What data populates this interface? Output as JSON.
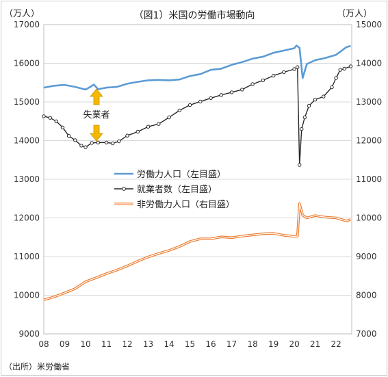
{
  "chart_data": {
    "type": "line",
    "title": "（図1）米国の労働市場動向",
    "source": "（出所）米労働省",
    "left_unit": "（万人）",
    "right_unit": "（万人）",
    "ylim_left": [
      9000,
      17000
    ],
    "ylim_right": [
      7000,
      15000
    ],
    "left_ticks": [
      "17000",
      "16000",
      "15000",
      "14000",
      "13000",
      "12000",
      "11000",
      "10000",
      "9000"
    ],
    "right_ticks": [
      "15000",
      "14000",
      "13000",
      "12000",
      "11000",
      "10000",
      "9000",
      "8000",
      "7000"
    ],
    "x_ticks": [
      "08",
      "09",
      "10",
      "11",
      "12",
      "13",
      "14",
      "15",
      "16",
      "17",
      "18",
      "19",
      "20",
      "21",
      "22"
    ],
    "annotation": "失業者",
    "grid": true,
    "legend_placement": "center",
    "series": [
      {
        "name": "労働力人口（左目盛）",
        "axis": "left",
        "color": "#5b9bd5",
        "style": "line",
        "x": [
          2008.0,
          2008.5,
          2009.0,
          2009.5,
          2010.0,
          2010.2,
          2010.4,
          2010.6,
          2011.0,
          2011.5,
          2012.0,
          2012.5,
          2013.0,
          2013.5,
          2014.0,
          2014.5,
          2015.0,
          2015.5,
          2016.0,
          2016.5,
          2017.0,
          2017.5,
          2018.0,
          2018.5,
          2019.0,
          2019.5,
          2020.0,
          2020.1,
          2020.25,
          2020.4,
          2020.6,
          2021.0,
          2021.5,
          2022.0,
          2022.5,
          2022.7
        ],
        "values": [
          15370,
          15420,
          15440,
          15390,
          15320,
          15380,
          15450,
          15330,
          15370,
          15390,
          15470,
          15520,
          15560,
          15570,
          15560,
          15580,
          15670,
          15720,
          15830,
          15860,
          15960,
          16030,
          16120,
          16170,
          16270,
          16330,
          16390,
          16460,
          16400,
          15620,
          15980,
          16080,
          16140,
          16220,
          16420,
          16450
        ]
      },
      {
        "name": "就業者数（左目盛）",
        "axis": "left",
        "color": "#262626",
        "style": "line-markers",
        "x": [
          2008.0,
          2008.3,
          2008.6,
          2008.9,
          2009.2,
          2009.5,
          2009.8,
          2010.0,
          2010.3,
          2010.6,
          2011.0,
          2011.3,
          2011.6,
          2012.0,
          2012.5,
          2013.0,
          2013.5,
          2014.0,
          2014.5,
          2015.0,
          2015.5,
          2016.0,
          2016.5,
          2017.0,
          2017.5,
          2018.0,
          2018.5,
          2019.0,
          2019.5,
          2020.0,
          2020.15,
          2020.25,
          2020.35,
          2020.5,
          2020.7,
          2021.0,
          2021.4,
          2021.8,
          2022.0,
          2022.2,
          2022.4,
          2022.7
        ],
        "values": [
          14630,
          14590,
          14500,
          14340,
          14120,
          14010,
          13870,
          13830,
          13940,
          13950,
          13950,
          13930,
          13980,
          14130,
          14230,
          14360,
          14430,
          14600,
          14780,
          14920,
          15010,
          15100,
          15180,
          15250,
          15320,
          15460,
          15560,
          15680,
          15770,
          15850,
          15900,
          13370,
          14300,
          14600,
          14900,
          15060,
          15140,
          15380,
          15620,
          15830,
          15860,
          15920
        ]
      },
      {
        "name": "非労働力人口（右目盛）",
        "axis": "right",
        "color": "#ed7d31",
        "style": "double-line",
        "x": [
          2008.0,
          2008.5,
          2009.0,
          2009.5,
          2010.0,
          2010.5,
          2011.0,
          2011.5,
          2012.0,
          2012.5,
          2013.0,
          2013.5,
          2014.0,
          2014.5,
          2015.0,
          2015.5,
          2016.0,
          2016.5,
          2017.0,
          2017.5,
          2018.0,
          2018.5,
          2019.0,
          2019.5,
          2020.0,
          2020.15,
          2020.25,
          2020.4,
          2020.6,
          2021.0,
          2021.5,
          2022.0,
          2022.5,
          2022.7
        ],
        "values": [
          7880,
          7960,
          8060,
          8170,
          8350,
          8450,
          8560,
          8650,
          8760,
          8880,
          8990,
          9080,
          9160,
          9260,
          9390,
          9460,
          9460,
          9510,
          9490,
          9530,
          9560,
          9590,
          9600,
          9550,
          9520,
          9530,
          10370,
          10070,
          10000,
          10060,
          10020,
          10000,
          9920,
          9960
        ]
      }
    ]
  }
}
